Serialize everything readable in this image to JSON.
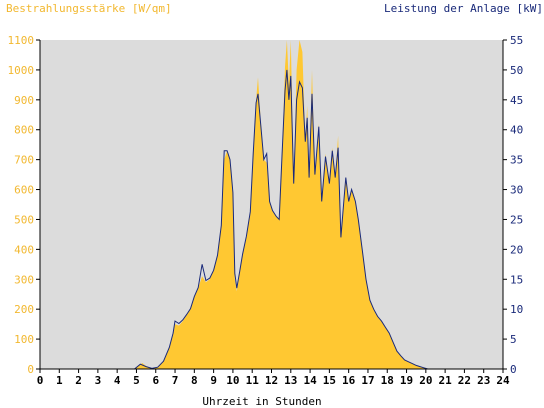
{
  "chart_data": {
    "type": "area",
    "left_title": "Bestrahlungsstärke [W/qm]",
    "right_title": "Leistung der Anlage [kW]",
    "xlabel": "Uhrzeit in Stunden",
    "x_ticks": [
      "0",
      "1",
      "2",
      "3",
      "4",
      "5",
      "6",
      "7",
      "8",
      "9",
      "10",
      "11",
      "12",
      "13",
      "14",
      "15",
      "16",
      "17",
      "18",
      "19",
      "20",
      "21",
      "22",
      "23",
      "24"
    ],
    "y_left_ticks": [
      "0",
      "100",
      "200",
      "300",
      "400",
      "500",
      "600",
      "700",
      "800",
      "900",
      "1000",
      "1100"
    ],
    "y_right_ticks": [
      "0",
      "5",
      "10",
      "15",
      "20",
      "25",
      "30",
      "35",
      "40",
      "45",
      "50",
      "55"
    ],
    "xlim": [
      0,
      24
    ],
    "ylim_left": [
      0,
      1100
    ],
    "ylim_right": [
      0,
      55
    ],
    "grid": false,
    "colors": {
      "plot_bg": "#dcdcdc",
      "irradiance_fill": "#ffc832",
      "power_line": "#1a2a7a",
      "left_axis_text": "#f2b830",
      "right_axis_text": "#1a2a7a",
      "tick_text": "#000000"
    },
    "series": [
      {
        "key": "irradiance",
        "axis": "left",
        "unit": "W/qm",
        "points": [
          [
            0,
            0
          ],
          [
            4.9,
            0
          ],
          [
            5.1,
            10
          ],
          [
            5.3,
            20
          ],
          [
            5.5,
            10
          ],
          [
            5.8,
            2
          ],
          [
            6.1,
            5
          ],
          [
            6.4,
            25
          ],
          [
            6.7,
            70
          ],
          [
            6.9,
            115
          ],
          [
            7.0,
            150
          ],
          [
            7.2,
            145
          ],
          [
            7.4,
            160
          ],
          [
            7.6,
            180
          ],
          [
            7.8,
            200
          ],
          [
            8.0,
            240
          ],
          [
            8.2,
            270
          ],
          [
            8.4,
            310
          ],
          [
            8.6,
            290
          ],
          [
            8.8,
            300
          ],
          [
            9.0,
            330
          ],
          [
            9.2,
            380
          ],
          [
            9.4,
            480
          ],
          [
            9.55,
            700
          ],
          [
            9.7,
            730
          ],
          [
            9.85,
            700
          ],
          [
            10.0,
            580
          ],
          [
            10.1,
            300
          ],
          [
            10.2,
            260
          ],
          [
            10.35,
            320
          ],
          [
            10.5,
            380
          ],
          [
            10.7,
            440
          ],
          [
            10.9,
            520
          ],
          [
            11.05,
            720
          ],
          [
            11.2,
            900
          ],
          [
            11.3,
            975
          ],
          [
            11.45,
            820
          ],
          [
            11.6,
            700
          ],
          [
            11.75,
            690
          ],
          [
            11.9,
            560
          ],
          [
            12.05,
            530
          ],
          [
            12.25,
            510
          ],
          [
            12.4,
            500
          ],
          [
            12.55,
            720
          ],
          [
            12.7,
            1010
          ],
          [
            12.8,
            1100
          ],
          [
            12.9,
            950
          ],
          [
            13.0,
            1100
          ],
          [
            13.15,
            620
          ],
          [
            13.3,
            1000
          ],
          [
            13.45,
            1100
          ],
          [
            13.6,
            1060
          ],
          [
            13.75,
            760
          ],
          [
            13.85,
            880
          ],
          [
            13.95,
            640
          ],
          [
            14.1,
            1000
          ],
          [
            14.25,
            650
          ],
          [
            14.45,
            820
          ],
          [
            14.6,
            560
          ],
          [
            14.8,
            720
          ],
          [
            15.0,
            620
          ],
          [
            15.15,
            740
          ],
          [
            15.3,
            640
          ],
          [
            15.45,
            780
          ],
          [
            15.6,
            440
          ],
          [
            15.75,
            560
          ],
          [
            15.85,
            640
          ],
          [
            16.0,
            560
          ],
          [
            16.15,
            600
          ],
          [
            16.35,
            560
          ],
          [
            16.5,
            500
          ],
          [
            16.7,
            400
          ],
          [
            16.9,
            300
          ],
          [
            17.1,
            230
          ],
          [
            17.3,
            200
          ],
          [
            17.5,
            175
          ],
          [
            17.7,
            160
          ],
          [
            17.9,
            140
          ],
          [
            18.1,
            120
          ],
          [
            18.3,
            90
          ],
          [
            18.5,
            60
          ],
          [
            18.7,
            45
          ],
          [
            18.9,
            30
          ],
          [
            19.1,
            25
          ],
          [
            19.3,
            18
          ],
          [
            19.5,
            12
          ],
          [
            19.7,
            8
          ],
          [
            19.9,
            4
          ],
          [
            20.1,
            0
          ],
          [
            24,
            0
          ]
        ]
      },
      {
        "key": "power",
        "axis": "right",
        "unit": "kW",
        "points": [
          [
            0,
            0
          ],
          [
            4.9,
            0
          ],
          [
            5.2,
            0.8
          ],
          [
            5.5,
            0.4
          ],
          [
            5.8,
            0.1
          ],
          [
            6.1,
            0.3
          ],
          [
            6.4,
            1.3
          ],
          [
            6.7,
            3.6
          ],
          [
            6.9,
            6
          ],
          [
            7.0,
            8
          ],
          [
            7.2,
            7.6
          ],
          [
            7.4,
            8.2
          ],
          [
            7.6,
            9.1
          ],
          [
            7.8,
            10.1
          ],
          [
            8.0,
            12.1
          ],
          [
            8.2,
            13.6
          ],
          [
            8.4,
            17.5
          ],
          [
            8.6,
            14.8
          ],
          [
            8.8,
            15.2
          ],
          [
            9.0,
            16.5
          ],
          [
            9.2,
            19
          ],
          [
            9.4,
            24
          ],
          [
            9.55,
            36.5
          ],
          [
            9.7,
            36.5
          ],
          [
            9.85,
            35
          ],
          [
            10.0,
            29.5
          ],
          [
            10.1,
            16
          ],
          [
            10.2,
            13.5
          ],
          [
            10.35,
            16.3
          ],
          [
            10.5,
            19.2
          ],
          [
            10.7,
            22.2
          ],
          [
            10.9,
            26.3
          ],
          [
            11.05,
            36
          ],
          [
            11.2,
            44.5
          ],
          [
            11.3,
            46
          ],
          [
            11.45,
            40.5
          ],
          [
            11.6,
            35
          ],
          [
            11.75,
            36
          ],
          [
            11.9,
            28
          ],
          [
            12.05,
            26.5
          ],
          [
            12.25,
            25.5
          ],
          [
            12.4,
            25
          ],
          [
            12.55,
            36
          ],
          [
            12.7,
            46.5
          ],
          [
            12.8,
            50
          ],
          [
            12.9,
            45
          ],
          [
            13.0,
            49
          ],
          [
            13.15,
            31
          ],
          [
            13.3,
            45
          ],
          [
            13.45,
            48
          ],
          [
            13.6,
            47
          ],
          [
            13.75,
            38
          ],
          [
            13.85,
            42
          ],
          [
            13.95,
            32
          ],
          [
            14.1,
            46
          ],
          [
            14.25,
            32.5
          ],
          [
            14.45,
            40.5
          ],
          [
            14.6,
            28
          ],
          [
            14.8,
            35.5
          ],
          [
            15.0,
            31
          ],
          [
            15.15,
            36.5
          ],
          [
            15.3,
            32
          ],
          [
            15.45,
            37
          ],
          [
            15.6,
            22
          ],
          [
            15.75,
            28
          ],
          [
            15.85,
            32
          ],
          [
            16.0,
            28
          ],
          [
            16.15,
            30
          ],
          [
            16.35,
            28
          ],
          [
            16.5,
            25
          ],
          [
            16.7,
            20
          ],
          [
            16.9,
            15
          ],
          [
            17.1,
            11.5
          ],
          [
            17.3,
            10
          ],
          [
            17.5,
            8.8
          ],
          [
            17.7,
            8
          ],
          [
            17.9,
            7
          ],
          [
            18.1,
            6
          ],
          [
            18.3,
            4.5
          ],
          [
            18.5,
            3
          ],
          [
            18.7,
            2.2
          ],
          [
            18.9,
            1.5
          ],
          [
            19.1,
            1.2
          ],
          [
            19.3,
            0.9
          ],
          [
            19.5,
            0.6
          ],
          [
            19.7,
            0.4
          ],
          [
            19.9,
            0.2
          ],
          [
            20.1,
            0
          ],
          [
            24,
            0
          ]
        ]
      }
    ]
  }
}
